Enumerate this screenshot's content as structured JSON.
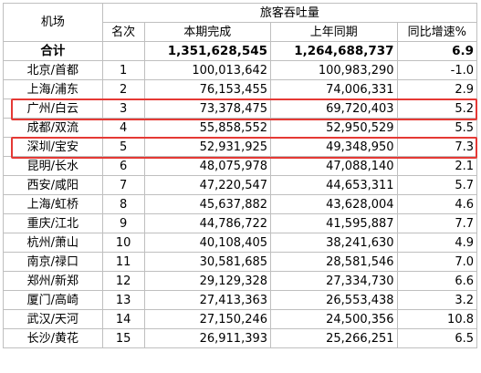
{
  "header": {
    "airport_label": "机场",
    "group_label": "旅客吞吐量",
    "rank_label": "名次",
    "current_label": "本期完成",
    "prior_label": "上年同期",
    "growth_label": "同比增速%"
  },
  "total": {
    "label": "合计",
    "current": "1,351,628,545",
    "prior": "1,264,688,737",
    "growth": "6.9"
  },
  "rows": [
    {
      "airport": "北京/首都",
      "rank": "1",
      "current": "100,013,642",
      "prior": "100,983,290",
      "growth": "-1.0"
    },
    {
      "airport": "上海/浦东",
      "rank": "2",
      "current": "76,153,455",
      "prior": "74,006,331",
      "growth": "2.9"
    },
    {
      "airport": "广州/白云",
      "rank": "3",
      "current": "73,378,475",
      "prior": "69,720,403",
      "growth": "5.2"
    },
    {
      "airport": "成都/双流",
      "rank": "4",
      "current": "55,858,552",
      "prior": "52,950,529",
      "growth": "5.5"
    },
    {
      "airport": "深圳/宝安",
      "rank": "5",
      "current": "52,931,925",
      "prior": "49,348,950",
      "growth": "7.3"
    },
    {
      "airport": "昆明/长水",
      "rank": "6",
      "current": "48,075,978",
      "prior": "47,088,140",
      "growth": "2.1"
    },
    {
      "airport": "西安/咸阳",
      "rank": "7",
      "current": "47,220,547",
      "prior": "44,653,311",
      "growth": "5.7"
    },
    {
      "airport": "上海/虹桥",
      "rank": "8",
      "current": "45,637,882",
      "prior": "43,628,004",
      "growth": "4.6"
    },
    {
      "airport": "重庆/江北",
      "rank": "9",
      "current": "44,786,722",
      "prior": "41,595,887",
      "growth": "7.7"
    },
    {
      "airport": "杭州/萧山",
      "rank": "10",
      "current": "40,108,405",
      "prior": "38,241,630",
      "growth": "4.9"
    },
    {
      "airport": "南京/禄口",
      "rank": "11",
      "current": "30,581,685",
      "prior": "28,581,546",
      "growth": "7.0"
    },
    {
      "airport": "郑州/新郑",
      "rank": "12",
      "current": "29,129,328",
      "prior": "27,334,730",
      "growth": "6.6"
    },
    {
      "airport": "厦门/高崎",
      "rank": "13",
      "current": "27,413,363",
      "prior": "26,553,438",
      "growth": "3.2"
    },
    {
      "airport": "武汉/天河",
      "rank": "14",
      "current": "27,150,246",
      "prior": "24,500,356",
      "growth": "10.8"
    },
    {
      "airport": "长沙/黄花",
      "rank": "15",
      "current": "26,911,393",
      "prior": "25,266,251",
      "growth": "6.5"
    }
  ],
  "highlight_color": "#e53935"
}
